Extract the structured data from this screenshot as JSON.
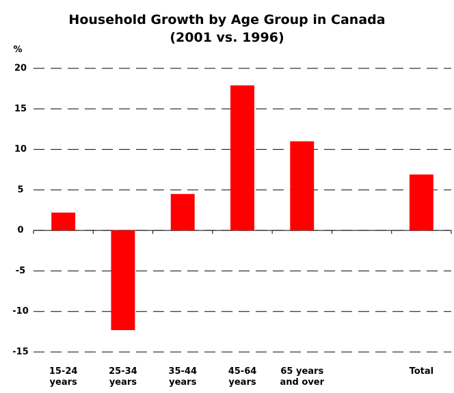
{
  "chart_data": {
    "type": "bar",
    "title": "Household Growth by Age Group in Canada",
    "subtitle": "(2001 vs. 1996)",
    "y_label": "%",
    "categories": [
      "15-24 years",
      "25-34 years",
      "35-44 years",
      "45-64 years",
      "65 years and over",
      null,
      "Total"
    ],
    "values": [
      2.2,
      -12.3,
      4.5,
      17.9,
      11,
      null,
      6.9
    ],
    "color": "#ff0000",
    "ylim": [
      -15,
      20
    ],
    "yticks": [
      -15,
      -10,
      -5,
      0,
      5,
      10,
      15,
      20
    ],
    "grid": true
  }
}
